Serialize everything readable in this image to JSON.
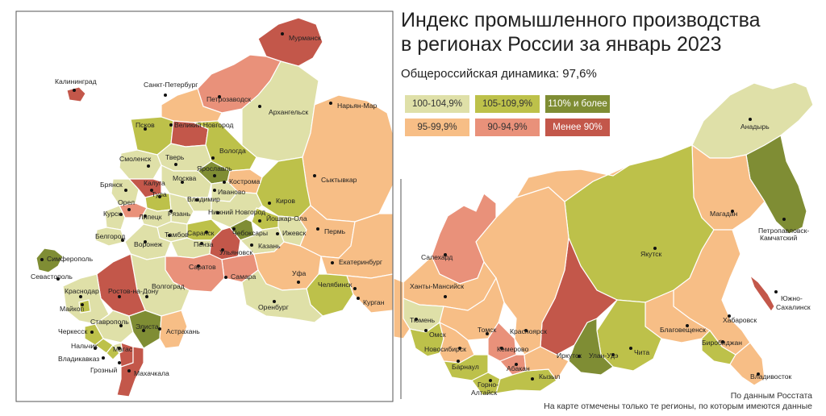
{
  "title_line1": "Индекс промышленного производства",
  "title_line2": "в регионах России за январь 2023",
  "subtitle": "Общероссийская динамика: 97,6%",
  "legend": [
    {
      "label": "100-104,9%",
      "color": "#dfe0a8",
      "text_color": "#333333"
    },
    {
      "label": "105-109,9%",
      "color": "#bdc14a",
      "text_color": "#333333"
    },
    {
      "label": "110% и более",
      "color": "#7f8d34",
      "text_color": "#ffffff"
    },
    {
      "label": "95-99,9%",
      "color": "#f7be86",
      "text_color": "#333333"
    },
    {
      "label": "90-94,9%",
      "color": "#e9917a",
      "text_color": "#333333"
    },
    {
      "label": "Менее 90%",
      "color": "#c3574a",
      "text_color": "#ffffff"
    }
  ],
  "source_line1": "По данным Росстата",
  "source_line2": "На карте отмечены только те регионы, по которым имеются данные",
  "colors": {
    "frame": "#555555",
    "dot": "#111111"
  },
  "inset_cities": [
    {
      "name": "Калининград",
      "key": "kaliningrad"
    },
    {
      "name": "Санкт-Петербург",
      "key": "spb"
    },
    {
      "name": "Петрозаводск",
      "key": "petrozavodsk"
    },
    {
      "name": "Мурманск",
      "key": "murmansk"
    },
    {
      "name": "Архангельск",
      "key": "arkhangelsk"
    },
    {
      "name": "Нарьян-Мар",
      "key": "naryanmar"
    },
    {
      "name": "Псков",
      "key": "pskov"
    },
    {
      "name": "Великий Новгород",
      "key": "novgorod"
    },
    {
      "name": "Вологда",
      "key": "vologda"
    },
    {
      "name": "Смоленск",
      "key": "smolensk"
    },
    {
      "name": "Тверь",
      "key": "tver"
    },
    {
      "name": "Ярославль",
      "key": "yaroslavl"
    },
    {
      "name": "Сыктывкар",
      "key": "syktyvkar"
    },
    {
      "name": "Брянск",
      "key": "bryansk"
    },
    {
      "name": "Калуга",
      "key": "kaluga"
    },
    {
      "name": "Москва",
      "key": "moscow"
    },
    {
      "name": "Кострома",
      "key": "kostroma"
    },
    {
      "name": "Иваново",
      "key": "ivanovo"
    },
    {
      "name": "Орел",
      "key": "orel"
    },
    {
      "name": "Тула",
      "key": "tula"
    },
    {
      "name": "Владимир",
      "key": "vladimir"
    },
    {
      "name": "Киров",
      "key": "kirov"
    },
    {
      "name": "Курск",
      "key": "kursk"
    },
    {
      "name": "Липецк",
      "key": "lipetsk"
    },
    {
      "name": "Рязань",
      "key": "ryazan"
    },
    {
      "name": "Нижний Новгород",
      "key": "nnovgorod"
    },
    {
      "name": "Йошкар-Ола",
      "key": "yoshkarola"
    },
    {
      "name": "Чебоксары",
      "key": "cheboksary"
    },
    {
      "name": "Ижевск",
      "key": "izhevsk"
    },
    {
      "name": "Пермь",
      "key": "perm"
    },
    {
      "name": "Белгород",
      "key": "belgorod"
    },
    {
      "name": "Тамбов",
      "key": "tambov"
    },
    {
      "name": "Саранск",
      "key": "saransk"
    },
    {
      "name": "Казань",
      "key": "kazan"
    },
    {
      "name": "Воронеж",
      "key": "voronezh"
    },
    {
      "name": "Пенза",
      "key": "penza"
    },
    {
      "name": "Ульяновск",
      "key": "ulyanovsk"
    },
    {
      "name": "Симферополь",
      "key": "simferopol"
    },
    {
      "name": "Екатеринбург",
      "key": "ekaterinburg"
    },
    {
      "name": "Севастополь",
      "key": "sevastopol"
    },
    {
      "name": "Саратов",
      "key": "saratov"
    },
    {
      "name": "Самара",
      "key": "samara"
    },
    {
      "name": "Уфа",
      "key": "ufa"
    },
    {
      "name": "Ростов-на-Дону",
      "key": "rostov"
    },
    {
      "name": "Краснодар",
      "key": "krasnodar"
    },
    {
      "name": "Волгоград",
      "key": "volgograd"
    },
    {
      "name": "Челябинск",
      "key": "chelyabinsk"
    },
    {
      "name": "Майкоп",
      "key": "maikop"
    },
    {
      "name": "Курган",
      "key": "kurgan"
    },
    {
      "name": "Оренбург",
      "key": "orenburg"
    },
    {
      "name": "Ставрополь",
      "key": "stavropol"
    },
    {
      "name": "Элиста",
      "key": "elista"
    },
    {
      "name": "Черкесск",
      "key": "cherkessk"
    },
    {
      "name": "Астрахань",
      "key": "astrakhan"
    },
    {
      "name": "Нальчик",
      "key": "nalchik"
    },
    {
      "name": "Магас",
      "key": "magas"
    },
    {
      "name": "Владикавказ",
      "key": "vladikavkaz"
    },
    {
      "name": "Грозный",
      "key": "grozny"
    },
    {
      "name": "Махачкала",
      "key": "makhachkala"
    }
  ],
  "main_cities": [
    {
      "name": "Анадырь",
      "key": "anadyr"
    },
    {
      "name": "Магадан",
      "key": "magadan"
    },
    {
      "name": "Якутск",
      "key": "yakutsk"
    },
    {
      "name": "Петропавловск-",
      "key": "petropavlovsk1"
    },
    {
      "name": "Камчатский",
      "key": "petropavlovsk2"
    },
    {
      "name": "Салехард",
      "key": "salekhard"
    },
    {
      "name": "Ханты-Мансийск",
      "key": "khanty"
    },
    {
      "name": "Южно-",
      "key": "yuzhno1"
    },
    {
      "name": "Сахалинск",
      "key": "yuzhno2"
    },
    {
      "name": "Тюмень",
      "key": "tyumen"
    },
    {
      "name": "Благовещенск",
      "key": "blagoveshchensk"
    },
    {
      "name": "Хабаровск",
      "key": "khabarovsk"
    },
    {
      "name": "Омск",
      "key": "omsk"
    },
    {
      "name": "Томск",
      "key": "tomsk"
    },
    {
      "name": "Красноярск",
      "key": "krasnoyarsk"
    },
    {
      "name": "Новосибирск",
      "key": "novosibirsk"
    },
    {
      "name": "Кемерово",
      "key": "kemerovo"
    },
    {
      "name": "Иркутск",
      "key": "irkutsk"
    },
    {
      "name": "Улан-Удэ",
      "key": "ulanude"
    },
    {
      "name": "Чита",
      "key": "chita"
    },
    {
      "name": "Биробиджан",
      "key": "birobidzhan"
    },
    {
      "name": "Барнаул",
      "key": "barnaul"
    },
    {
      "name": "Абакан",
      "key": "abakan"
    },
    {
      "name": "Кызыл",
      "key": "kyzyl"
    },
    {
      "name": "Горно-",
      "key": "gorno1"
    },
    {
      "name": "Алтайск",
      "key": "gorno2"
    },
    {
      "name": "Владивосток",
      "key": "vladivostok"
    }
  ]
}
